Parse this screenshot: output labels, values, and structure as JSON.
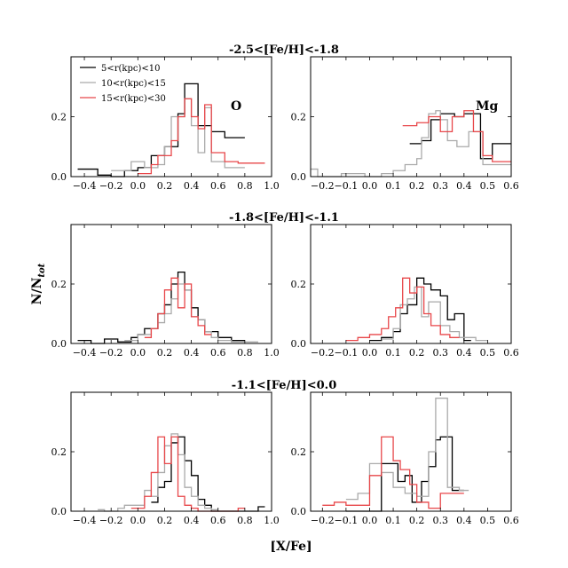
{
  "chart_data": {
    "type": "histogram-step",
    "ylabel": "N/N$_{tot}$",
    "ylabel_main": "N/N",
    "ylabel_sub": "tot",
    "xlabel": "[X/Fe]",
    "legend": [
      {
        "label": "5<r(kpc)<10",
        "color": "#000000"
      },
      {
        "label": "10<r(kpc)<15",
        "color": "#aaaaaa"
      },
      {
        "label": "15<r(kpc)<30",
        "color": "#e8474a"
      }
    ],
    "row_titles": [
      "-2.5<[Fe/H]<-1.8",
      "-1.8<[Fe/H]<-1.1",
      "-1.1<[Fe/H]<0.0"
    ],
    "column_labels": [
      "O",
      "Mg"
    ],
    "columns": [
      {
        "element": "O",
        "xlim": [
          -0.5,
          1.0
        ],
        "xticks": [
          -0.4,
          -0.2,
          0.0,
          0.2,
          0.4,
          0.6,
          0.8,
          1.0
        ],
        "xtick_labels": [
          "−0.4",
          "−0.2",
          "0.0",
          "0.2",
          "0.4",
          "0.6",
          "0.8",
          "1.0"
        ]
      },
      {
        "element": "Mg",
        "xlim": [
          -0.25,
          0.6
        ],
        "xticks": [
          -0.2,
          -0.1,
          0.0,
          0.1,
          0.2,
          0.3,
          0.4,
          0.5,
          0.6
        ],
        "xtick_labels": [
          "−0.2",
          "−0.1",
          "0.0",
          "0.1",
          "0.2",
          "0.3",
          "0.4",
          "0.5",
          "0.6"
        ]
      }
    ],
    "ylim": [
      0.0,
      0.4
    ],
    "yticks": [
      0.0,
      0.2
    ],
    "ytick_labels": [
      "0.0",
      "0.2"
    ],
    "panels": [
      {
        "row": 0,
        "col": 0,
        "series": [
          {
            "name": "5<r(kpc)<10",
            "color": "#000000",
            "edges": [
              -0.45,
              -0.3,
              -0.2,
              -0.1,
              0.0,
              0.1,
              0.2,
              0.3,
              0.35,
              0.45,
              0.55,
              0.65,
              0.8
            ],
            "values": [
              0.025,
              0.005,
              0.0,
              0.02,
              0.03,
              0.07,
              0.1,
              0.21,
              0.31,
              0.17,
              0.15,
              0.13
            ]
          },
          {
            "name": "10<r(kpc)<15",
            "color": "#aaaaaa",
            "edges": [
              -0.2,
              -0.05,
              0.05,
              0.15,
              0.2,
              0.25,
              0.35,
              0.4,
              0.45,
              0.5,
              0.55,
              0.65,
              0.8
            ],
            "values": [
              0.02,
              0.05,
              0.03,
              0.04,
              0.1,
              0.2,
              0.26,
              0.17,
              0.08,
              0.23,
              0.05,
              0.03
            ]
          },
          {
            "name": "15<r(kpc)<30",
            "color": "#e8474a",
            "edges": [
              0.0,
              0.1,
              0.15,
              0.25,
              0.3,
              0.35,
              0.4,
              0.45,
              0.5,
              0.55,
              0.65,
              0.75,
              0.95
            ],
            "values": [
              0.01,
              0.04,
              0.07,
              0.12,
              0.2,
              0.26,
              0.2,
              0.16,
              0.24,
              0.08,
              0.05,
              0.045
            ]
          }
        ]
      },
      {
        "row": 0,
        "col": 1,
        "series": [
          {
            "name": "5<r(kpc)<10",
            "color": "#000000",
            "edges": [
              0.17,
              0.22,
              0.26,
              0.3,
              0.36,
              0.4,
              0.47,
              0.52,
              0.6
            ],
            "values": [
              0.11,
              0.12,
              0.19,
              0.21,
              0.2,
              0.21,
              0.06,
              0.11
            ]
          },
          {
            "name": "10<r(kpc)<15",
            "color": "#aaaaaa",
            "edges": [
              -0.25,
              -0.22,
              -0.12,
              -0.02,
              0.05,
              0.1,
              0.15,
              0.2,
              0.22,
              0.25,
              0.28,
              0.3,
              0.33,
              0.37,
              0.42,
              0.48,
              0.6
            ],
            "values": [
              0.025,
              0.0,
              0.01,
              0.0,
              0.01,
              0.02,
              0.04,
              0.06,
              0.13,
              0.21,
              0.22,
              0.19,
              0.12,
              0.1,
              0.15,
              0.04
            ]
          },
          {
            "name": "15<r(kpc)<30",
            "color": "#e8474a",
            "edges": [
              0.14,
              0.2,
              0.25,
              0.3,
              0.35,
              0.4,
              0.44,
              0.48,
              0.52,
              0.6
            ],
            "values": [
              0.17,
              0.18,
              0.2,
              0.15,
              0.2,
              0.22,
              0.15,
              0.07,
              0.05
            ]
          }
        ]
      },
      {
        "row": 1,
        "col": 0,
        "series": [
          {
            "name": "5<r(kpc)<10",
            "color": "#000000",
            "edges": [
              -0.45,
              -0.35,
              -0.25,
              -0.15,
              -0.05,
              0.0,
              0.05,
              0.1,
              0.15,
              0.2,
              0.25,
              0.3,
              0.35,
              0.4,
              0.45,
              0.5,
              0.6,
              0.7,
              0.8
            ],
            "values": [
              0.01,
              0.0,
              0.015,
              0.005,
              0.02,
              0.03,
              0.05,
              0.05,
              0.1,
              0.13,
              0.2,
              0.24,
              0.18,
              0.12,
              0.08,
              0.04,
              0.02,
              0.01
            ]
          },
          {
            "name": "10<r(kpc)<15",
            "color": "#aaaaaa",
            "edges": [
              -0.1,
              0.0,
              0.1,
              0.15,
              0.2,
              0.25,
              0.3,
              0.35,
              0.4,
              0.45,
              0.5,
              0.55,
              0.6,
              0.7,
              0.8,
              0.9
            ],
            "values": [
              0.01,
              0.03,
              0.05,
              0.07,
              0.1,
              0.15,
              0.2,
              0.18,
              0.09,
              0.08,
              0.04,
              0.02,
              0.01,
              0.005,
              0.005
            ]
          },
          {
            "name": "15<r(kpc)<30",
            "color": "#e8474a",
            "edges": [
              0.05,
              0.1,
              0.15,
              0.2,
              0.25,
              0.3,
              0.35,
              0.4,
              0.45,
              0.5,
              0.55
            ],
            "values": [
              0.02,
              0.05,
              0.1,
              0.18,
              0.22,
              0.12,
              0.2,
              0.09,
              0.06,
              0.03
            ]
          }
        ]
      },
      {
        "row": 1,
        "col": 1,
        "series": [
          {
            "name": "5<r(kpc)<10",
            "color": "#000000",
            "edges": [
              0.0,
              0.05,
              0.1,
              0.13,
              0.16,
              0.2,
              0.23,
              0.26,
              0.3,
              0.33,
              0.36,
              0.4,
              0.43
            ],
            "values": [
              0.01,
              0.02,
              0.04,
              0.1,
              0.13,
              0.22,
              0.2,
              0.18,
              0.16,
              0.08,
              0.1,
              0.01
            ]
          },
          {
            "name": "10<r(kpc)<15",
            "color": "#aaaaaa",
            "edges": [
              0.05,
              0.1,
              0.13,
              0.16,
              0.19,
              0.22,
              0.25,
              0.3,
              0.34,
              0.38,
              0.45,
              0.5
            ],
            "values": [
              0.015,
              0.05,
              0.13,
              0.15,
              0.19,
              0.09,
              0.14,
              0.06,
              0.04,
              0.02,
              0.01
            ]
          },
          {
            "name": "15<r(kpc)<30",
            "color": "#e8474a",
            "edges": [
              -0.1,
              -0.05,
              0.0,
              0.05,
              0.08,
              0.11,
              0.14,
              0.17,
              0.2,
              0.23,
              0.26,
              0.3,
              0.34,
              0.38
            ],
            "values": [
              0.01,
              0.02,
              0.03,
              0.05,
              0.09,
              0.12,
              0.22,
              0.17,
              0.19,
              0.1,
              0.06,
              0.03,
              0.02
            ]
          }
        ]
      },
      {
        "row": 2,
        "col": 0,
        "series": [
          {
            "name": "5<r(kpc)<10",
            "color": "#000000",
            "edges": [
              0.1,
              0.15,
              0.2,
              0.25,
              0.3,
              0.35,
              0.4,
              0.45,
              0.5,
              0.55,
              0.6,
              0.9,
              0.95
            ],
            "values": [
              0.03,
              0.08,
              0.1,
              0.23,
              0.25,
              0.17,
              0.12,
              0.04,
              0.02,
              0.0,
              0.0,
              0.015
            ]
          },
          {
            "name": "10<r(kpc)<15",
            "color": "#aaaaaa",
            "edges": [
              -0.3,
              -0.25,
              -0.15,
              -0.1,
              0.0,
              0.05,
              0.1,
              0.15,
              0.2,
              0.25,
              0.3,
              0.35,
              0.4,
              0.45,
              0.5,
              0.55,
              0.6
            ],
            "values": [
              0.005,
              0.0,
              0.01,
              0.02,
              0.02,
              0.07,
              0.05,
              0.13,
              0.22,
              0.26,
              0.19,
              0.08,
              0.05,
              0.02,
              0.01,
              0.005
            ]
          },
          {
            "name": "15<r(kpc)<30",
            "color": "#e8474a",
            "edges": [
              -0.05,
              0.05,
              0.1,
              0.15,
              0.2,
              0.25,
              0.3,
              0.35,
              0.4,
              0.45,
              0.55,
              0.75,
              0.8
            ],
            "values": [
              0.01,
              0.05,
              0.13,
              0.25,
              0.16,
              0.25,
              0.05,
              0.02,
              0.01,
              0.0,
              0.0,
              0.01
            ]
          }
        ]
      },
      {
        "row": 2,
        "col": 1,
        "series": [
          {
            "name": "5<r(kpc)<10",
            "color": "#000000",
            "edges": [
              -0.1,
              0.0,
              0.05,
              0.12,
              0.15,
              0.18,
              0.22,
              0.25,
              0.28,
              0.3,
              0.35,
              0.4
            ],
            "values": [
              0.0,
              0.0,
              0.16,
              0.1,
              0.12,
              0.03,
              0.1,
              0.15,
              0.24,
              0.25,
              0.07
            ]
          },
          {
            "name": "10<r(kpc)<15",
            "color": "#aaaaaa",
            "edges": [
              -0.1,
              -0.05,
              0.0,
              0.05,
              0.1,
              0.15,
              0.2,
              0.25,
              0.28,
              0.33,
              0.38,
              0.42
            ],
            "values": [
              0.04,
              0.06,
              0.16,
              0.13,
              0.08,
              0.06,
              0.05,
              0.2,
              0.38,
              0.08,
              0.07
            ]
          },
          {
            "name": "15<r(kpc)<30",
            "color": "#e8474a",
            "edges": [
              -0.2,
              -0.15,
              -0.1,
              -0.05,
              0.0,
              0.05,
              0.1,
              0.13,
              0.17,
              0.2,
              0.25,
              0.3,
              0.4
            ],
            "values": [
              0.02,
              0.03,
              0.02,
              0.02,
              0.12,
              0.25,
              0.17,
              0.14,
              0.09,
              0.03,
              0.01,
              0.06
            ]
          }
        ]
      }
    ]
  }
}
